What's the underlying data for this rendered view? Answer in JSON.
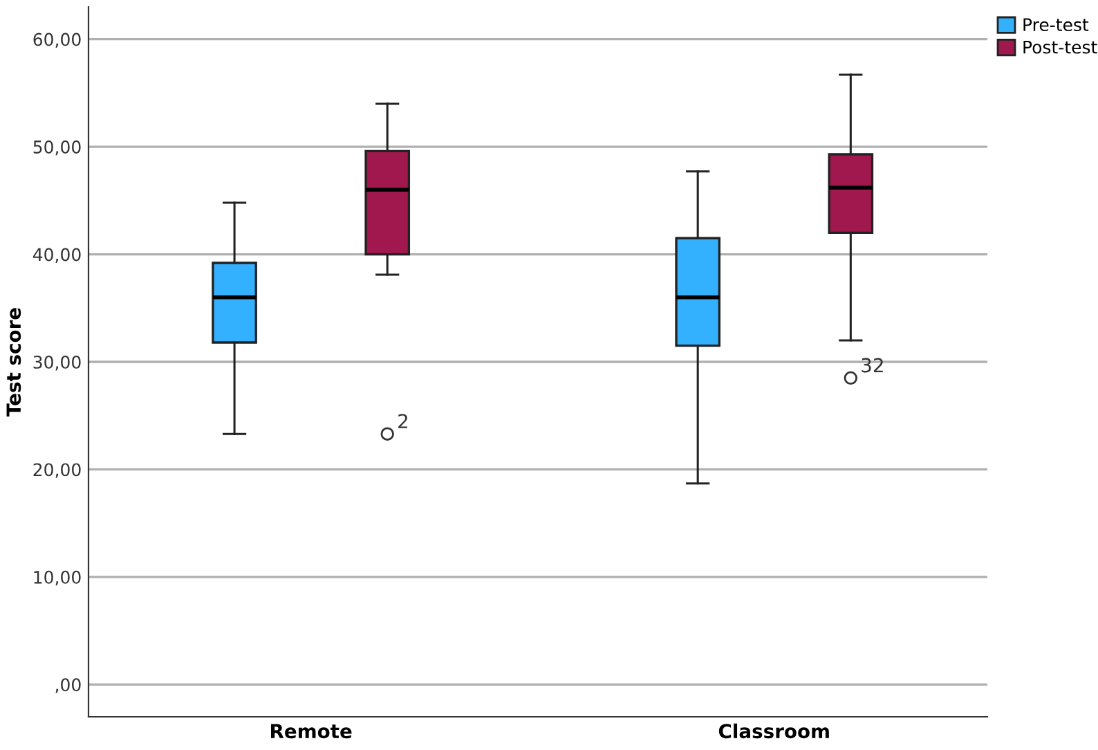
{
  "chart_data": {
    "type": "box",
    "ylabel": "Test score",
    "categories": [
      "Remote",
      "Classroom"
    ],
    "series": [
      {
        "name": "Pre-test",
        "color": "#33b1ff",
        "boxes": [
          {
            "low": 23.3,
            "q1": 31.8,
            "median": 36.0,
            "q3": 39.2,
            "high": 44.8
          },
          {
            "low": 18.7,
            "q1": 31.5,
            "median": 36.0,
            "q3": 41.5,
            "high": 47.7
          }
        ]
      },
      {
        "name": "Post-test",
        "color": "#a0184e",
        "boxes": [
          {
            "low": 38.1,
            "q1": 40.0,
            "median": 46.0,
            "q3": 49.6,
            "high": 54.0,
            "outliers": [
              23.3
            ]
          },
          {
            "low": 32.0,
            "q1": 42.0,
            "median": 46.2,
            "q3": 49.3,
            "high": 56.7,
            "outliers": [
              28.5
            ]
          }
        ]
      }
    ],
    "annotations": [
      "2",
      "32"
    ],
    "ylim": [
      -3,
      63
    ],
    "yticks": [
      {
        "value": 0,
        "label": ",00"
      },
      {
        "value": 10,
        "label": "10,00"
      },
      {
        "value": 20,
        "label": "20,00"
      },
      {
        "value": 30,
        "label": "30,00"
      },
      {
        "value": 40,
        "label": "40,00"
      },
      {
        "value": 50,
        "label": "50,00"
      },
      {
        "value": 60,
        "label": "60,00"
      }
    ],
    "grid": "y",
    "legend": "top right"
  }
}
